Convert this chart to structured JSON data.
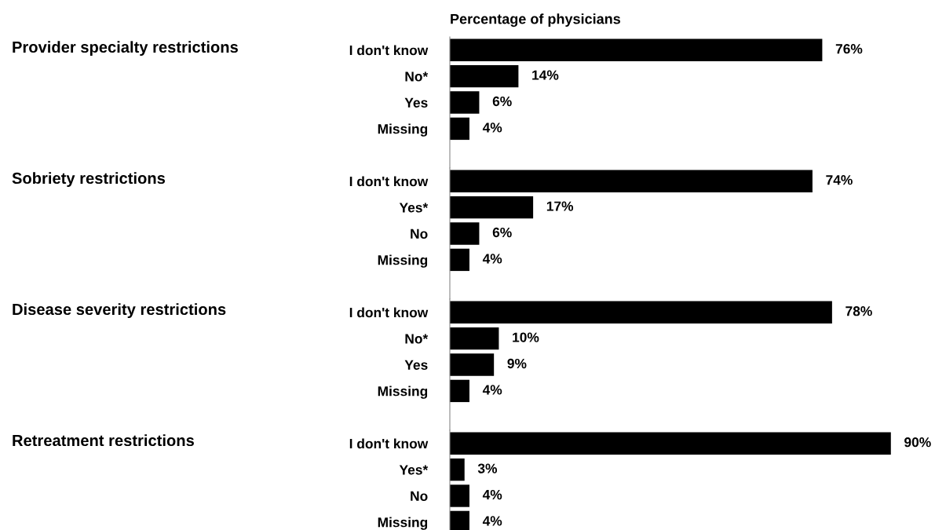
{
  "chart_data": [
    {
      "type": "bar",
      "orientation": "horizontal",
      "ylabel": "Provider specialty restrictions",
      "xlabel": "Percentage of physicians",
      "categories": [
        "I don't know",
        "No*",
        "Yes",
        "Missing"
      ],
      "values": [
        76,
        14,
        6,
        4
      ],
      "value_labels": [
        "76%",
        "14%",
        "6%",
        "4%"
      ],
      "color": "#000000",
      "xlim": [
        0,
        95
      ],
      "tick_labels": "y",
      "grid": false,
      "legend": false
    },
    {
      "type": "bar",
      "orientation": "horizontal",
      "ylabel": "Sobriety restrictions",
      "categories": [
        "I don't know",
        "Yes*",
        "No",
        "Missing"
      ],
      "values": [
        74,
        17,
        6,
        4
      ],
      "value_labels": [
        "74%",
        "17%",
        "6%",
        "4%"
      ],
      "color": "#000000",
      "xlim": [
        0,
        95
      ],
      "tick_labels": "y",
      "grid": false,
      "legend": false
    },
    {
      "type": "bar",
      "orientation": "horizontal",
      "ylabel": "Disease severity restrictions",
      "categories": [
        "I don't know",
        "No*",
        "Yes",
        "Missing"
      ],
      "values": [
        78,
        10,
        9,
        4
      ],
      "value_labels": [
        "78%",
        "10%",
        "9%",
        "4%"
      ],
      "color": "#000000",
      "xlim": [
        0,
        95
      ],
      "tick_labels": "y",
      "grid": false,
      "legend": false
    },
    {
      "type": "bar",
      "orientation": "horizontal",
      "ylabel": "Retreatment restrictions",
      "categories": [
        "I don't know",
        "Yes*",
        "No",
        "Missing"
      ],
      "values": [
        90,
        3,
        4,
        4
      ],
      "value_labels": [
        "90%",
        "3%",
        "4%",
        "4%"
      ],
      "color": "#000000",
      "xlim": [
        0,
        95
      ],
      "tick_labels": "y",
      "grid": false,
      "legend": false
    }
  ]
}
